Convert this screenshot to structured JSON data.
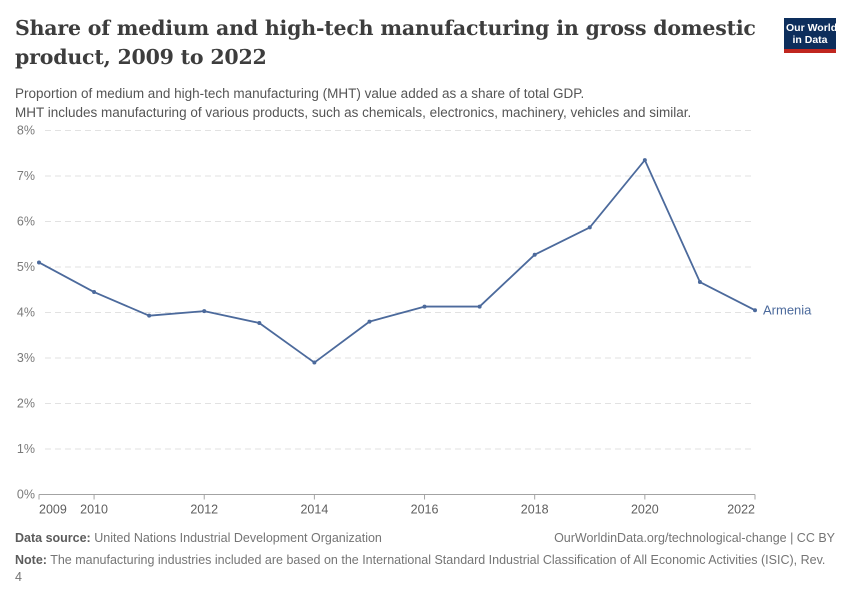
{
  "header": {
    "title": "Share of medium and high-tech manufacturing in gross domestic product, 2009 to 2022",
    "subtitle_line1": "Proportion of medium and high-tech manufacturing (MHT) value added as a share of total GDP.",
    "subtitle_line2": "MHT includes manufacturing of various products, such as chemicals, electronics, machinery, vehicles and similar.",
    "logo": {
      "line1": "Our World",
      "line2": "in Data",
      "bg_color": "#0d2e5c",
      "bar_color": "#c0261f"
    }
  },
  "chart_data": {
    "type": "line",
    "title": "Share of medium and high-tech manufacturing in gross domestic product, 2009 to 2022",
    "x": [
      2009,
      2010,
      2011,
      2012,
      2013,
      2014,
      2015,
      2016,
      2017,
      2018,
      2019,
      2020,
      2021,
      2022
    ],
    "series": [
      {
        "name": "Armenia",
        "color": "#4c6a9c",
        "values": [
          5.1,
          4.45,
          3.93,
          4.03,
          3.77,
          2.9,
          3.8,
          4.13,
          4.13,
          5.27,
          5.87,
          7.35,
          4.67,
          4.05
        ]
      }
    ],
    "xlabel": "",
    "ylabel": "",
    "xlim": [
      2009,
      2022
    ],
    "ylim": [
      0,
      8
    ],
    "xticks": [
      2009,
      2010,
      2012,
      2014,
      2016,
      2018,
      2020,
      2022
    ],
    "ytick_labels": [
      "0%",
      "1%",
      "2%",
      "3%",
      "4%",
      "5%",
      "6%",
      "7%",
      "8%"
    ],
    "grid": "horizontal-dashed",
    "legend_position": "end-of-line-label",
    "colors": {
      "gridline": "#e2e2e2",
      "axis": "#a3a3a3",
      "ytick_text": "#7a7a7a",
      "xtick_text": "#5f5f5f"
    }
  },
  "footer": {
    "datasource_label": "Data source:",
    "datasource_text": "United Nations Industrial Development Organization",
    "link": "OurWorldinData.org/technological-change | CC BY",
    "note_label": "Note:",
    "note_text": "The manufacturing industries included are based on the International Standard Industrial Classification of All Economic Activities (ISIC), Rev. 4"
  }
}
